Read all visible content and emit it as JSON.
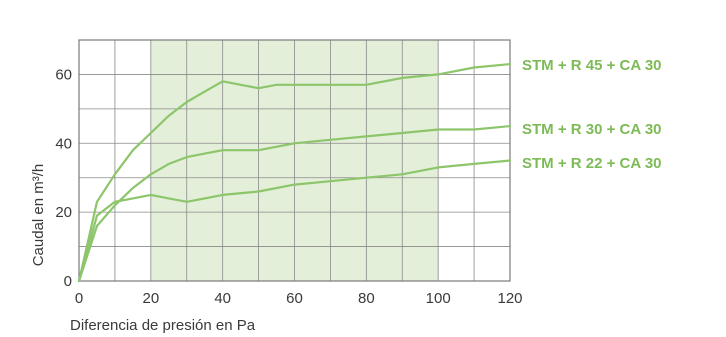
{
  "chart_data": {
    "type": "line",
    "xlabel": "Diferencia de presión en Pa",
    "ylabel": "Caudal en m³/h",
    "xlim": [
      0,
      120
    ],
    "ylim": [
      0,
      70
    ],
    "xticks": [
      0,
      20,
      40,
      60,
      80,
      100,
      120
    ],
    "yticks": [
      0,
      20,
      40,
      60
    ],
    "grid": true,
    "shaded_x_range": [
      20,
      100
    ],
    "colors": {
      "line": "#8cc56a",
      "shade": "#e3efd8",
      "grid": "#8a8a8a",
      "label": "#7dbb57",
      "text": "#3a3a3a"
    },
    "series": [
      {
        "name": "STM + R 45 + CA 30",
        "x": [
          0,
          5,
          10,
          15,
          20,
          25,
          30,
          35,
          40,
          45,
          50,
          55,
          60,
          70,
          80,
          90,
          100,
          110,
          120
        ],
        "y": [
          0,
          23,
          31,
          38,
          43,
          48,
          52,
          55,
          58,
          57,
          56,
          57,
          57,
          57,
          57,
          59,
          60,
          62,
          63
        ]
      },
      {
        "name": "STM + R 30 + CA 30",
        "x": [
          0,
          5,
          10,
          15,
          20,
          25,
          30,
          35,
          40,
          50,
          60,
          70,
          80,
          90,
          100,
          110,
          120
        ],
        "y": [
          0,
          16,
          22,
          27,
          31,
          34,
          36,
          37,
          38,
          38,
          40,
          41,
          42,
          43,
          44,
          44,
          45
        ]
      },
      {
        "name": "STM + R 22 + CA 30",
        "x": [
          0,
          5,
          10,
          15,
          20,
          25,
          30,
          35,
          40,
          50,
          60,
          70,
          80,
          90,
          100,
          110,
          120
        ],
        "y": [
          0,
          19,
          23,
          24,
          25,
          24,
          23,
          24,
          25,
          26,
          28,
          29,
          30,
          31,
          33,
          34,
          35
        ]
      }
    ]
  }
}
